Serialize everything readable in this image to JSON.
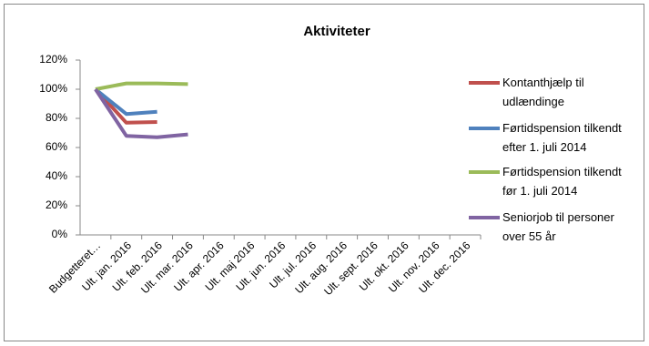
{
  "chart_data": {
    "type": "line",
    "title": "Aktiviteter",
    "categories": [
      "Budgetteret…",
      "Ult. jan. 2016",
      "Ult. feb. 2016",
      "Ult. mar. 2016",
      "Ult. apr. 2016",
      "Ult. maj 2016",
      "Ult. jun. 2016",
      "Ult. jul.  2016",
      "Ult. aug. 2016",
      "Ult. sept. 2016",
      "Ult. okt. 2016",
      "Ult. nov. 2016",
      "Ult. dec. 2016"
    ],
    "series": [
      {
        "name": "Kontanthjælp til udlændinge",
        "color": "#c0504d",
        "values": [
          100,
          77,
          77.5,
          null,
          null,
          null,
          null,
          null,
          null,
          null,
          null,
          null,
          null
        ]
      },
      {
        "name": "Førtidspension tilkendt efter 1. juli 2014",
        "color": "#4f81bd",
        "values": [
          100,
          83,
          84.5,
          null,
          null,
          null,
          null,
          null,
          null,
          null,
          null,
          null,
          null
        ]
      },
      {
        "name": "Førtidspension tilkendt før 1. juli 2014",
        "color": "#9bbb59",
        "values": [
          100,
          104,
          104,
          103.5,
          null,
          null,
          null,
          null,
          null,
          null,
          null,
          null,
          null
        ]
      },
      {
        "name": "Seniorjob til personer over 55 år",
        "color": "#8064a2",
        "values": [
          100,
          68,
          67,
          69,
          null,
          null,
          null,
          null,
          null,
          null,
          null,
          null,
          null
        ]
      }
    ],
    "ylim": [
      0,
      120
    ],
    "yticks": [
      {
        "value": 0,
        "label": "0%"
      },
      {
        "value": 20,
        "label": "20%"
      },
      {
        "value": 40,
        "label": "40%"
      },
      {
        "value": 60,
        "label": "60%"
      },
      {
        "value": 80,
        "label": "80%"
      },
      {
        "value": 100,
        "label": "100%"
      },
      {
        "value": 120,
        "label": "120%"
      }
    ],
    "legend": "right"
  }
}
